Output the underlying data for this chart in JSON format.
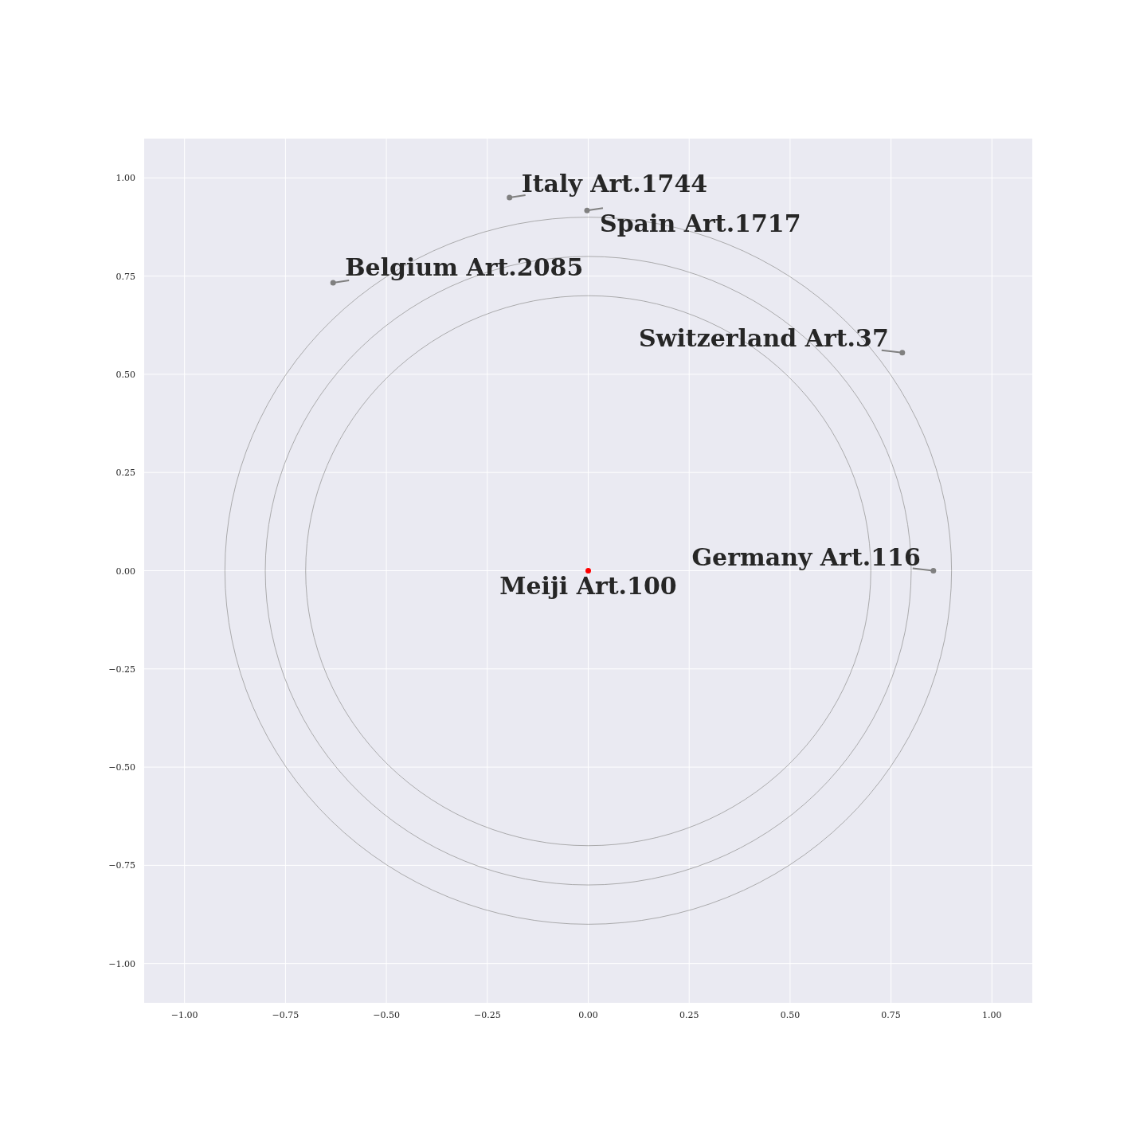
{
  "chart_data": {
    "type": "scatter",
    "xlim": [
      -1.1,
      1.1
    ],
    "ylim": [
      -1.1,
      1.1
    ],
    "xticks": [
      {
        "value": -1,
        "label": "−1.00"
      },
      {
        "value": -0.75,
        "label": "−0.75"
      },
      {
        "value": -0.5,
        "label": "−0.50"
      },
      {
        "value": -0.25,
        "label": "−0.25"
      },
      {
        "value": 0,
        "label": "0.00"
      },
      {
        "value": 0.25,
        "label": "0.25"
      },
      {
        "value": 0.5,
        "label": "0.50"
      },
      {
        "value": 0.75,
        "label": "0.75"
      },
      {
        "value": 1,
        "label": "1.00"
      }
    ],
    "yticks": [
      {
        "value": -1,
        "label": "−1.00"
      },
      {
        "value": -0.75,
        "label": "−0.75"
      },
      {
        "value": -0.5,
        "label": "−0.50"
      },
      {
        "value": -0.25,
        "label": "−0.25"
      },
      {
        "value": 0,
        "label": "0.00"
      },
      {
        "value": 0.25,
        "label": "0.25"
      },
      {
        "value": 0.5,
        "label": "0.50"
      },
      {
        "value": 0.75,
        "label": "0.75"
      },
      {
        "value": 1,
        "label": "1.00"
      }
    ],
    "grid": true,
    "series": [
      {
        "type": "scatter",
        "marker": "circle",
        "x": [
          0,
          0.855,
          0.778,
          -0.003,
          -0.195,
          -0.632
        ],
        "values": [
          0,
          0,
          0.555,
          0.917,
          0.95,
          0.733
        ],
        "colors": [
          "#ff0000",
          "#808080",
          "#808080",
          "#808080",
          "#808080",
          "#808080"
        ]
      }
    ],
    "annotations": [
      {
        "text": "Meiji Art.100",
        "x": 0,
        "y": 0
      },
      {
        "text": "Germany Art.116",
        "x": 0.855,
        "y": 0
      },
      {
        "text": "Switzerland Art.37",
        "x": 0.778,
        "y": 0.555
      },
      {
        "text": "Spain Art.1717",
        "x": -0.003,
        "y": 0.917
      },
      {
        "text": "Italy Art.1744",
        "x": -0.195,
        "y": 0.95
      },
      {
        "text": "Belgium Art.2085",
        "x": -0.632,
        "y": 0.733
      }
    ]
  }
}
